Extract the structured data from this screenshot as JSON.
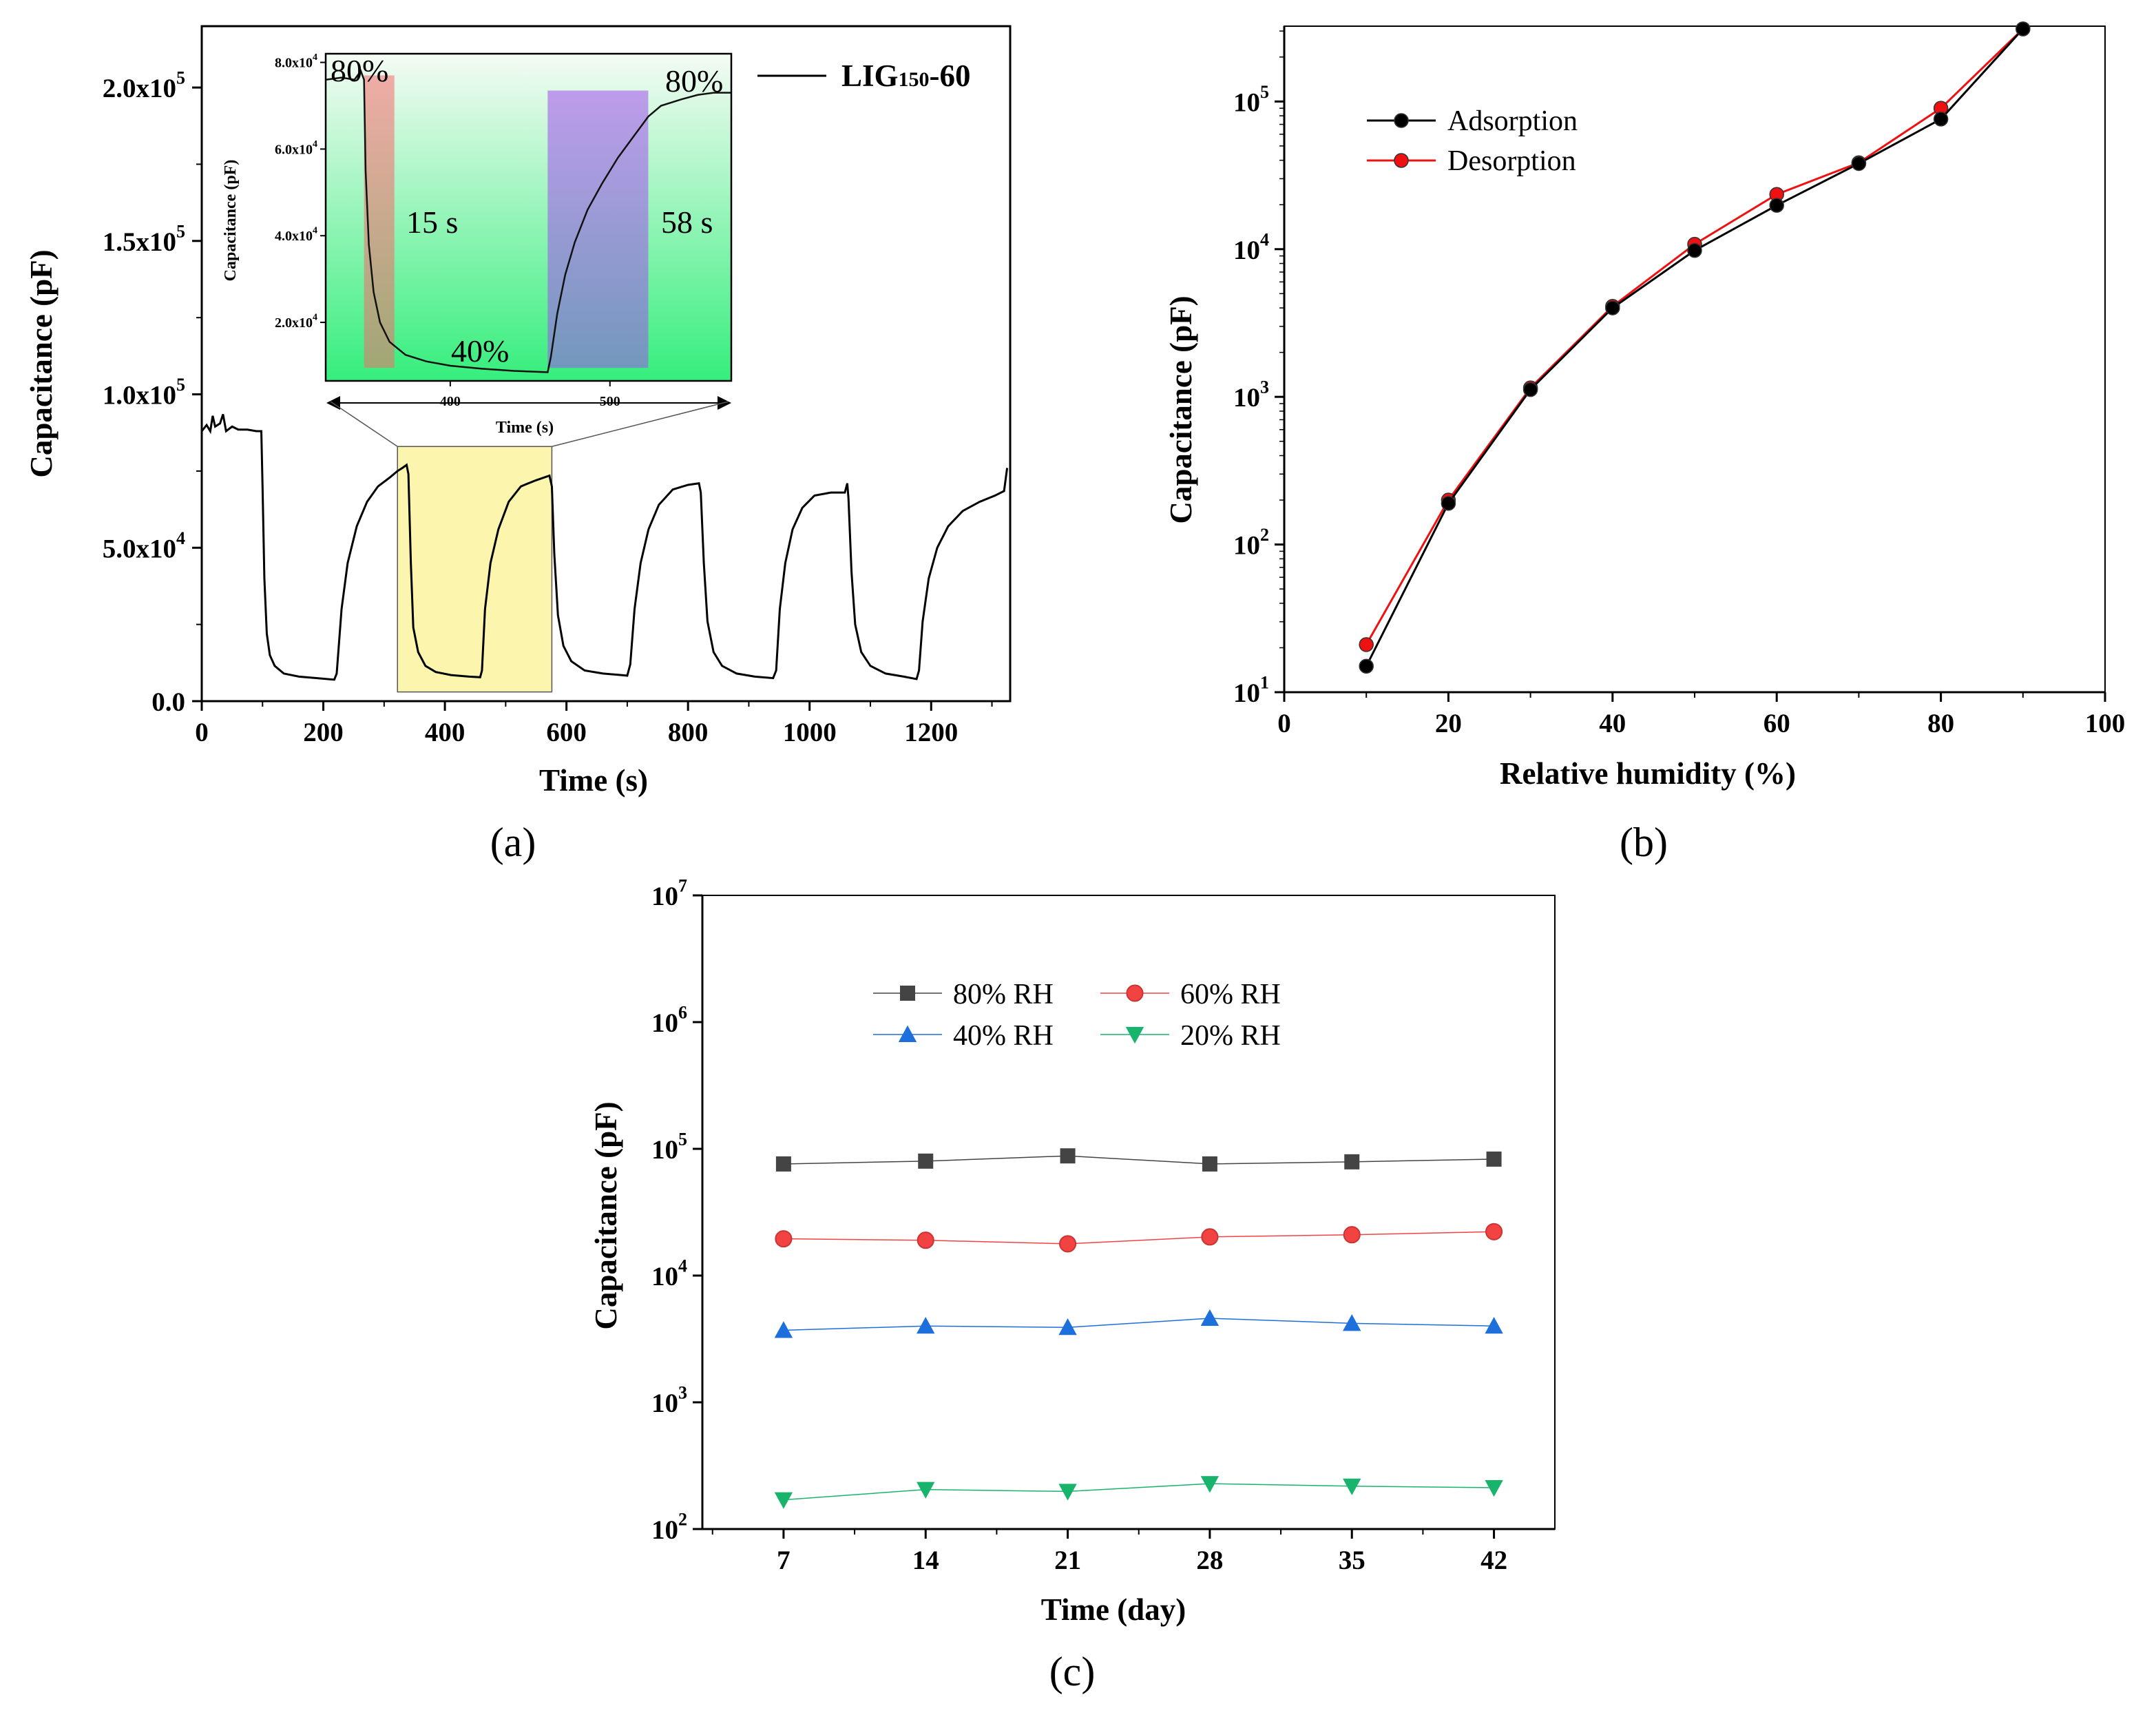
{
  "chart_data": [
    {
      "panel": "(a)",
      "type": "line",
      "xlabel": "Time (s)",
      "ylabel": "Capacitance (pF)",
      "xlim": [
        0,
        1330
      ],
      "ylim": [
        0,
        220000.0
      ],
      "xticks": [
        0,
        200,
        400,
        600,
        800,
        1000,
        1200
      ],
      "xtick_labels": [
        "0",
        "200",
        "400",
        "600",
        "800",
        "1000",
        "1200"
      ],
      "yticks": [
        0,
        50000,
        100000,
        150000,
        200000
      ],
      "ytick_mantissa": [
        "0.0",
        "5.0x10",
        "1.0x10",
        "1.5x10",
        "2.0x10"
      ],
      "ytick_exp": [
        "",
        "4",
        "5",
        "5",
        "5"
      ],
      "legend": {
        "label_main": "LIG",
        "label_sub": "150",
        "label_tail": "-60",
        "placement": "top-right"
      },
      "series": [
        {
          "name": "LIG150-60",
          "color": "#000000",
          "points": [
            [
              0,
              88000
            ],
            [
              8,
              90000
            ],
            [
              14,
              88000
            ],
            [
              18,
              93000
            ],
            [
              22,
              89500
            ],
            [
              30,
              90500
            ],
            [
              35,
              93500
            ],
            [
              40,
              88000
            ],
            [
              50,
              89500
            ],
            [
              60,
              88500
            ],
            [
              75,
              88500
            ],
            [
              90,
              88000
            ],
            [
              98,
              88000
            ],
            [
              100,
              70000
            ],
            [
              103,
              40000
            ],
            [
              107,
              22000
            ],
            [
              112,
              15000
            ],
            [
              120,
              11500
            ],
            [
              135,
              9000
            ],
            [
              160,
              8000
            ],
            [
              190,
              7500
            ],
            [
              218,
              7000
            ],
            [
              222,
              9000
            ],
            [
              230,
              30000
            ],
            [
              240,
              45000
            ],
            [
              255,
              57000
            ],
            [
              272,
              65000
            ],
            [
              290,
              70000
            ],
            [
              310,
              73000
            ],
            [
              322,
              75000
            ],
            [
              330,
              76000
            ],
            [
              337,
              77000
            ],
            [
              340,
              74000
            ],
            [
              344,
              45000
            ],
            [
              348,
              24000
            ],
            [
              356,
              16000
            ],
            [
              368,
              11500
            ],
            [
              385,
              9500
            ],
            [
              410,
              8500
            ],
            [
              440,
              8000
            ],
            [
              458,
              7800
            ],
            [
              461,
              10000
            ],
            [
              466,
              30000
            ],
            [
              475,
              45000
            ],
            [
              488,
              56000
            ],
            [
              505,
              65000
            ],
            [
              525,
              70000
            ],
            [
              550,
              72000
            ],
            [
              572,
              73500
            ],
            [
              576,
              70000
            ],
            [
              580,
              48000
            ],
            [
              586,
              28000
            ],
            [
              595,
              18000
            ],
            [
              608,
              13000
            ],
            [
              630,
              10000
            ],
            [
              660,
              9000
            ],
            [
              690,
              8500
            ],
            [
              700,
              8300
            ],
            [
              705,
              12000
            ],
            [
              712,
              30000
            ],
            [
              722,
              45000
            ],
            [
              735,
              56000
            ],
            [
              752,
              64000
            ],
            [
              775,
              69000
            ],
            [
              800,
              70500
            ],
            [
              818,
              71000
            ],
            [
              821,
              68000
            ],
            [
              826,
              45000
            ],
            [
              832,
              26000
            ],
            [
              842,
              16000
            ],
            [
              856,
              11500
            ],
            [
              880,
              9000
            ],
            [
              910,
              8000
            ],
            [
              940,
              7500
            ],
            [
              945,
              10000
            ],
            [
              951,
              30000
            ],
            [
              960,
              45000
            ],
            [
              972,
              56000
            ],
            [
              988,
              63000
            ],
            [
              1008,
              67000
            ],
            [
              1035,
              68000
            ],
            [
              1058,
              68000
            ],
            [
              1062,
              71000
            ],
            [
              1064,
              66000
            ],
            [
              1069,
              42000
            ],
            [
              1075,
              25000
            ],
            [
              1085,
              16000
            ],
            [
              1100,
              11500
            ],
            [
              1125,
              9000
            ],
            [
              1155,
              8000
            ],
            [
              1176,
              7200
            ],
            [
              1180,
              10000
            ],
            [
              1186,
              26000
            ],
            [
              1196,
              40000
            ],
            [
              1210,
              50000
            ],
            [
              1228,
              57000
            ],
            [
              1252,
              62000
            ],
            [
              1280,
              65000
            ],
            [
              1305,
              67000
            ],
            [
              1320,
              68500
            ],
            [
              1325,
              76000
            ]
          ]
        }
      ],
      "highlight": {
        "x_range": [
          322,
          576
        ],
        "y_range": [
          3000,
          83000
        ],
        "color": "#fbf5ae"
      },
      "inset": {
        "type": "line",
        "xlabel": "Time (s)",
        "ylabel": "Capacitance (pF)",
        "xlim": [
          322,
          576
        ],
        "ylim": [
          6500,
          82000
        ],
        "xticks": [
          400,
          500
        ],
        "xtick_labels": [
          "400",
          "500"
        ],
        "yticks": [
          20000,
          40000,
          60000,
          80000
        ],
        "ytick_mantissa": [
          "2.0x10",
          "4.0x10",
          "6.0x10",
          "8.0x10"
        ],
        "ytick_exp": [
          "4",
          "4",
          "4",
          "4"
        ],
        "background_gradient": [
          "#f5fbf4",
          "#35ee7c"
        ],
        "annotations": [
          "80%",
          "15 s",
          "40%",
          "58 s",
          "80%"
        ],
        "regions": [
          {
            "x_range": [
              346,
              365
            ],
            "y_range": [
              9500,
              77000
            ],
            "color": "#f46b6b"
          },
          {
            "x_range": [
              461,
              524
            ],
            "y_range": [
              9500,
              73500
            ],
            "color": "#a050ee"
          }
        ],
        "points": [
          [
            322,
            76000
          ],
          [
            332,
            76500
          ],
          [
            340,
            76000
          ],
          [
            344,
            78000
          ],
          [
            346,
            76000
          ],
          [
            347,
            55000
          ],
          [
            349,
            38000
          ],
          [
            352,
            27000
          ],
          [
            356,
            20000
          ],
          [
            362,
            15500
          ],
          [
            372,
            12500
          ],
          [
            385,
            11000
          ],
          [
            400,
            10000
          ],
          [
            420,
            9300
          ],
          [
            440,
            8800
          ],
          [
            461,
            8500
          ],
          [
            463,
            12000
          ],
          [
            467,
            22000
          ],
          [
            472,
            31000
          ],
          [
            478,
            38500
          ],
          [
            486,
            46000
          ],
          [
            495,
            52000
          ],
          [
            505,
            58000
          ],
          [
            515,
            63000
          ],
          [
            524,
            67500
          ],
          [
            532,
            70000
          ],
          [
            545,
            71500
          ],
          [
            555,
            72500
          ],
          [
            565,
            73000
          ],
          [
            576,
            73000
          ]
        ]
      }
    },
    {
      "panel": "(b)",
      "type": "line",
      "xlabel": "Relative humidity (%)",
      "ylabel": "Capacitance (pF)",
      "xlim": [
        0,
        100
      ],
      "ylim_log10": [
        1,
        5.51
      ],
      "yscale": "log",
      "xticks": [
        0,
        20,
        40,
        60,
        80,
        100
      ],
      "xtick_labels": [
        "0",
        "20",
        "40",
        "60",
        "80",
        "100"
      ],
      "ytick_base": "10",
      "ytick_exp": [
        "1",
        "2",
        "3",
        "4",
        "5"
      ],
      "x": [
        10,
        20,
        30,
        40,
        50,
        60,
        70,
        80,
        90
      ],
      "series": [
        {
          "name": "Adsorption",
          "color": "#000000",
          "values": [
            15,
            190,
            1120,
            4000,
            9800,
            19800,
            38000,
            76000,
            310000
          ]
        },
        {
          "name": "Desorption",
          "color": "#ee1111",
          "values": [
            21,
            200,
            1150,
            4100,
            10800,
            23500,
            38500,
            90000,
            310000
          ]
        }
      ],
      "legend_placement": "top-left"
    },
    {
      "panel": "(c)",
      "type": "line",
      "xlabel": "Time (day)",
      "ylabel": "Capacitance (pF)",
      "xlim": [
        3,
        45
      ],
      "ylim_log10": [
        2,
        7
      ],
      "yscale": "log",
      "xticks": [
        7,
        14,
        21,
        28,
        35,
        42
      ],
      "xtick_labels": [
        "7",
        "14",
        "21",
        "28",
        "35",
        "42"
      ],
      "ytick_base": "10",
      "ytick_exp": [
        "2",
        "3",
        "4",
        "5",
        "6",
        "7"
      ],
      "x": [
        7,
        14,
        21,
        28,
        35,
        42
      ],
      "series": [
        {
          "name": "80% RH",
          "marker": "square",
          "color": "#444444",
          "values": [
            76000,
            80000,
            88000,
            76000,
            79000,
            83000
          ]
        },
        {
          "name": "60% RH",
          "marker": "circle",
          "color": "#f24343",
          "values": [
            19500,
            19000,
            17800,
            20200,
            21000,
            22200
          ]
        },
        {
          "name": "40% RH",
          "marker": "triangle-up",
          "color": "#1d6fdb",
          "values": [
            3700,
            4000,
            3900,
            4600,
            4200,
            4000
          ]
        },
        {
          "name": "20% RH",
          "marker": "triangle-down",
          "color": "#19b46c",
          "values": [
            170,
            205,
            198,
            228,
            218,
            212
          ]
        }
      ],
      "legend_placement": "top-center"
    }
  ]
}
